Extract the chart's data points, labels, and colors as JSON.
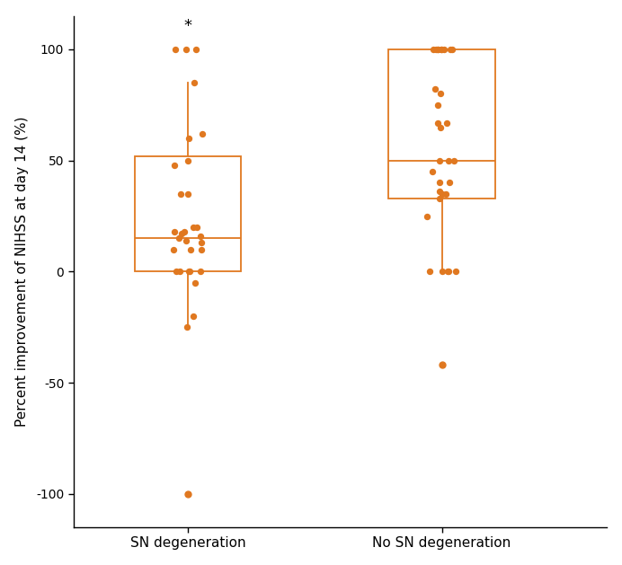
{
  "color": "#E07820",
  "background": "#ffffff",
  "ylabel": "Percent improvement of NIHSS at day 14 (%)",
  "xtick_labels": [
    "SN degeneration",
    "No SN degeneration"
  ],
  "ylim": [
    -115,
    115
  ],
  "yticks": [
    -100,
    -50,
    0,
    50,
    100
  ],
  "star_text": "*",
  "group1": {
    "label": "SN degeneration",
    "points": [
      100,
      100,
      100,
      85,
      62,
      60,
      50,
      48,
      35,
      35,
      20,
      20,
      18,
      18,
      17,
      16,
      15,
      14,
      13,
      10,
      10,
      10,
      0,
      0,
      0,
      0,
      0,
      -5,
      -20,
      -25
    ],
    "outliers": [
      -100
    ],
    "q1": 0,
    "median": 15,
    "q3": 52,
    "whisker_low": -25,
    "whisker_high": 85
  },
  "group2": {
    "label": "No SN degeneration",
    "points": [
      100,
      100,
      100,
      100,
      100,
      100,
      100,
      100,
      100,
      82,
      80,
      75,
      67,
      67,
      65,
      50,
      50,
      50,
      45,
      40,
      40,
      36,
      35,
      35,
      33,
      25,
      0,
      0,
      0,
      0,
      0
    ],
    "outliers": [
      -42
    ],
    "q1": 33,
    "median": 50,
    "q3": 100,
    "whisker_low": 0,
    "whisker_high": 100
  }
}
